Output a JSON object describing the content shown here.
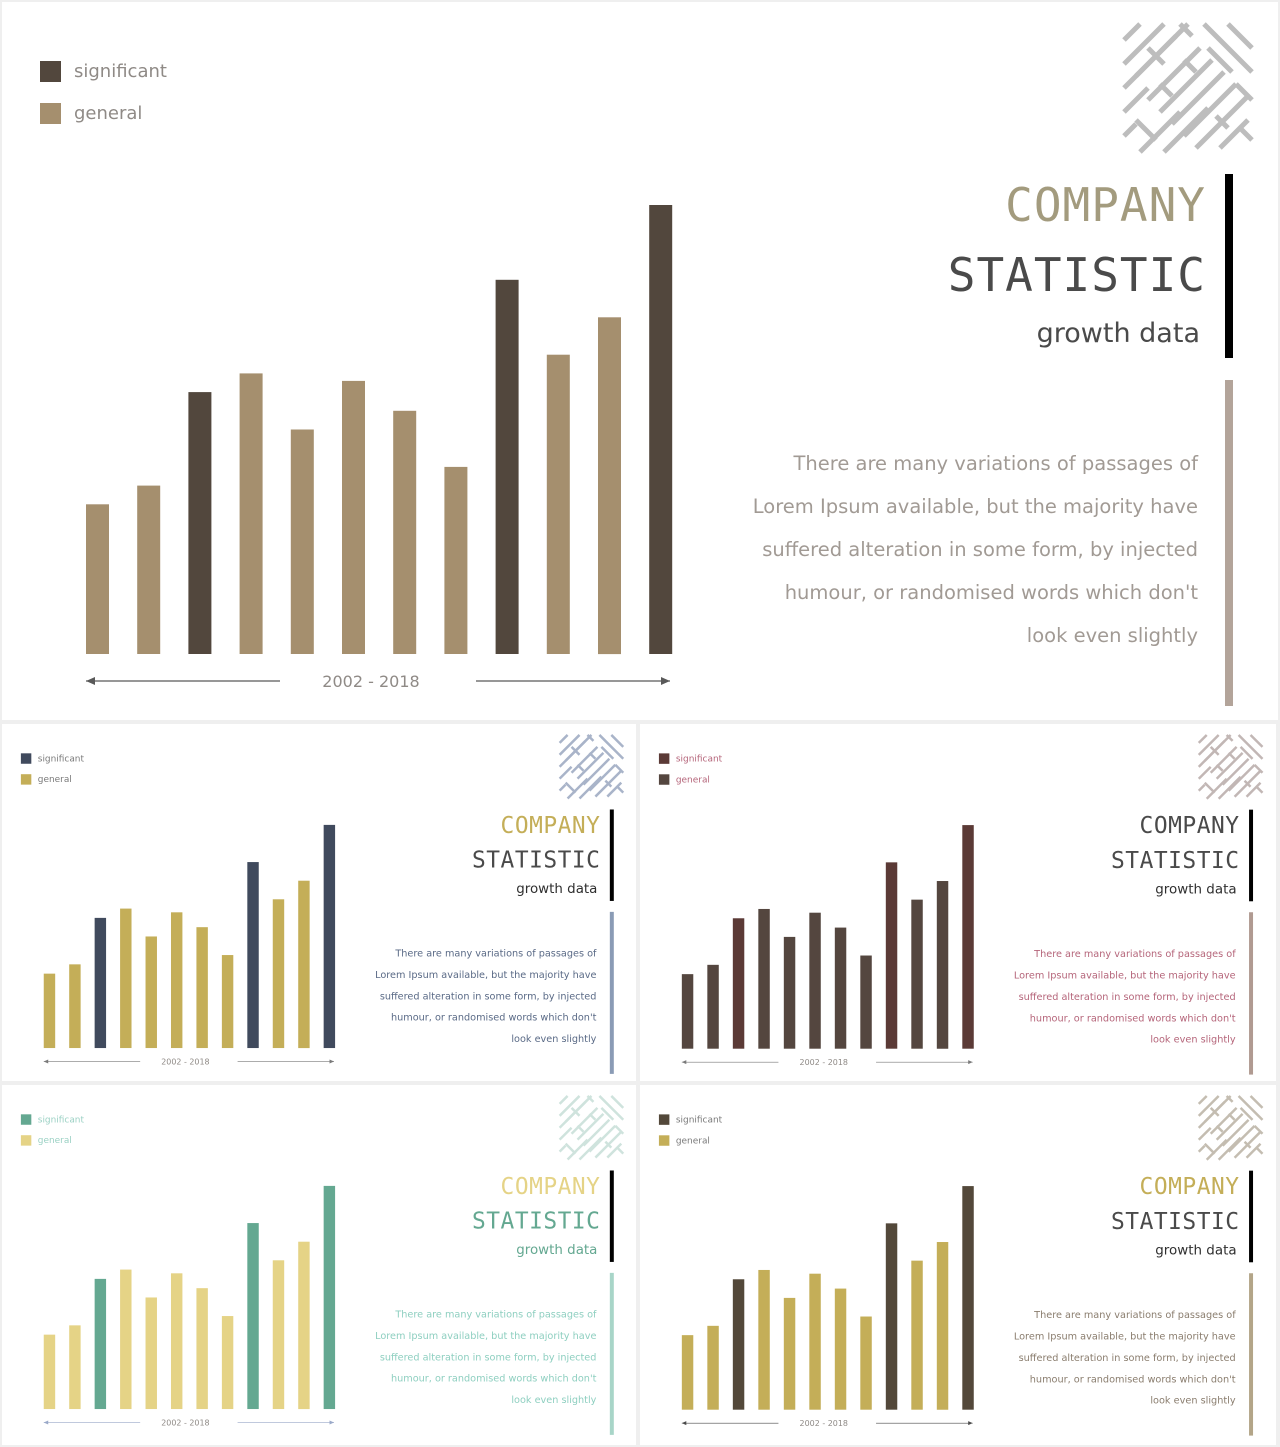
{
  "texts": {
    "legend_significant": "significant",
    "legend_general": "general",
    "title_line1": "COMPANY",
    "title_line2": "STATISTIC",
    "subtitle": "growth data",
    "body_lines": [
      "There are many variations of passages of",
      "Lorem Ipsum available, but the majority have",
      "suffered alteration in some form, by injected",
      "humour, or randomised words which don't",
      "look even slightly"
    ],
    "range_label": "2002 - 2018"
  },
  "chart_data": {
    "type": "bar",
    "categories": [
      "",
      "",
      "",
      "",
      "",
      "",
      "",
      "",
      "",
      "",
      "",
      ""
    ],
    "values": [
      40,
      45,
      70,
      75,
      60,
      73,
      65,
      50,
      100,
      80,
      90,
      120
    ],
    "kinds": [
      "general",
      "general",
      "significant",
      "general",
      "general",
      "general",
      "general",
      "general",
      "significant",
      "general",
      "general",
      "significant"
    ],
    "xlabel": "2002 - 2018",
    "ylim": [
      0,
      120
    ],
    "series": [
      {
        "name": "significant"
      },
      {
        "name": "general"
      }
    ]
  },
  "variants": [
    {
      "id": "main",
      "significant": "#52473d",
      "general": "#a58f6e",
      "title1": "#a39b7e",
      "title2": "#4a4a4a",
      "subtitle": "#4a4a4a",
      "body": "#a19a94",
      "side_bar": "#b3a49a",
      "pattern": "#bdbdbd",
      "axis": "#595959",
      "legend_text": "#8f8a86"
    },
    {
      "id": "blue-gold",
      "significant": "#404a5d",
      "general": "#c4ae58",
      "title1": "#c4ae58",
      "title2": "#4a4a4a",
      "subtitle": "#2f2f2f",
      "body": "#5a6a86",
      "side_bar": "#8a9bb5",
      "pattern": "#a9b4c9",
      "axis": "#7a7a7a",
      "legend_text": "#7a7a7a"
    },
    {
      "id": "maroon",
      "significant": "#5b3a36",
      "general": "#54463f",
      "title1": "#4a4a4a",
      "title2": "#4a4a4a",
      "subtitle": "#2f2f2f",
      "body": "#b5657a",
      "side_bar": "#b09a91",
      "pattern": "#c2b7b5",
      "axis": "#7a7a7a",
      "legend_text": "#b5657a"
    },
    {
      "id": "teal-yellow",
      "significant": "#64a891",
      "general": "#e5d386",
      "title1": "#e5d386",
      "title2": "#64a891",
      "subtitle": "#64a891",
      "body": "#8ecfc0",
      "side_bar": "#a8d5c8",
      "pattern": "#cfe3dd",
      "axis": "#9aa9c9",
      "legend_text": "#9bd1c4"
    },
    {
      "id": "olive",
      "significant": "#53483a",
      "general": "#c4ae58",
      "title1": "#c4ae58",
      "title2": "#4a4a4a",
      "subtitle": "#2f2f2f",
      "body": "#8a7d6e",
      "side_bar": "#b3a588",
      "pattern": "#c4bdb1",
      "axis": "#4a4a4a",
      "legend_text": "#7a7a7a"
    }
  ]
}
